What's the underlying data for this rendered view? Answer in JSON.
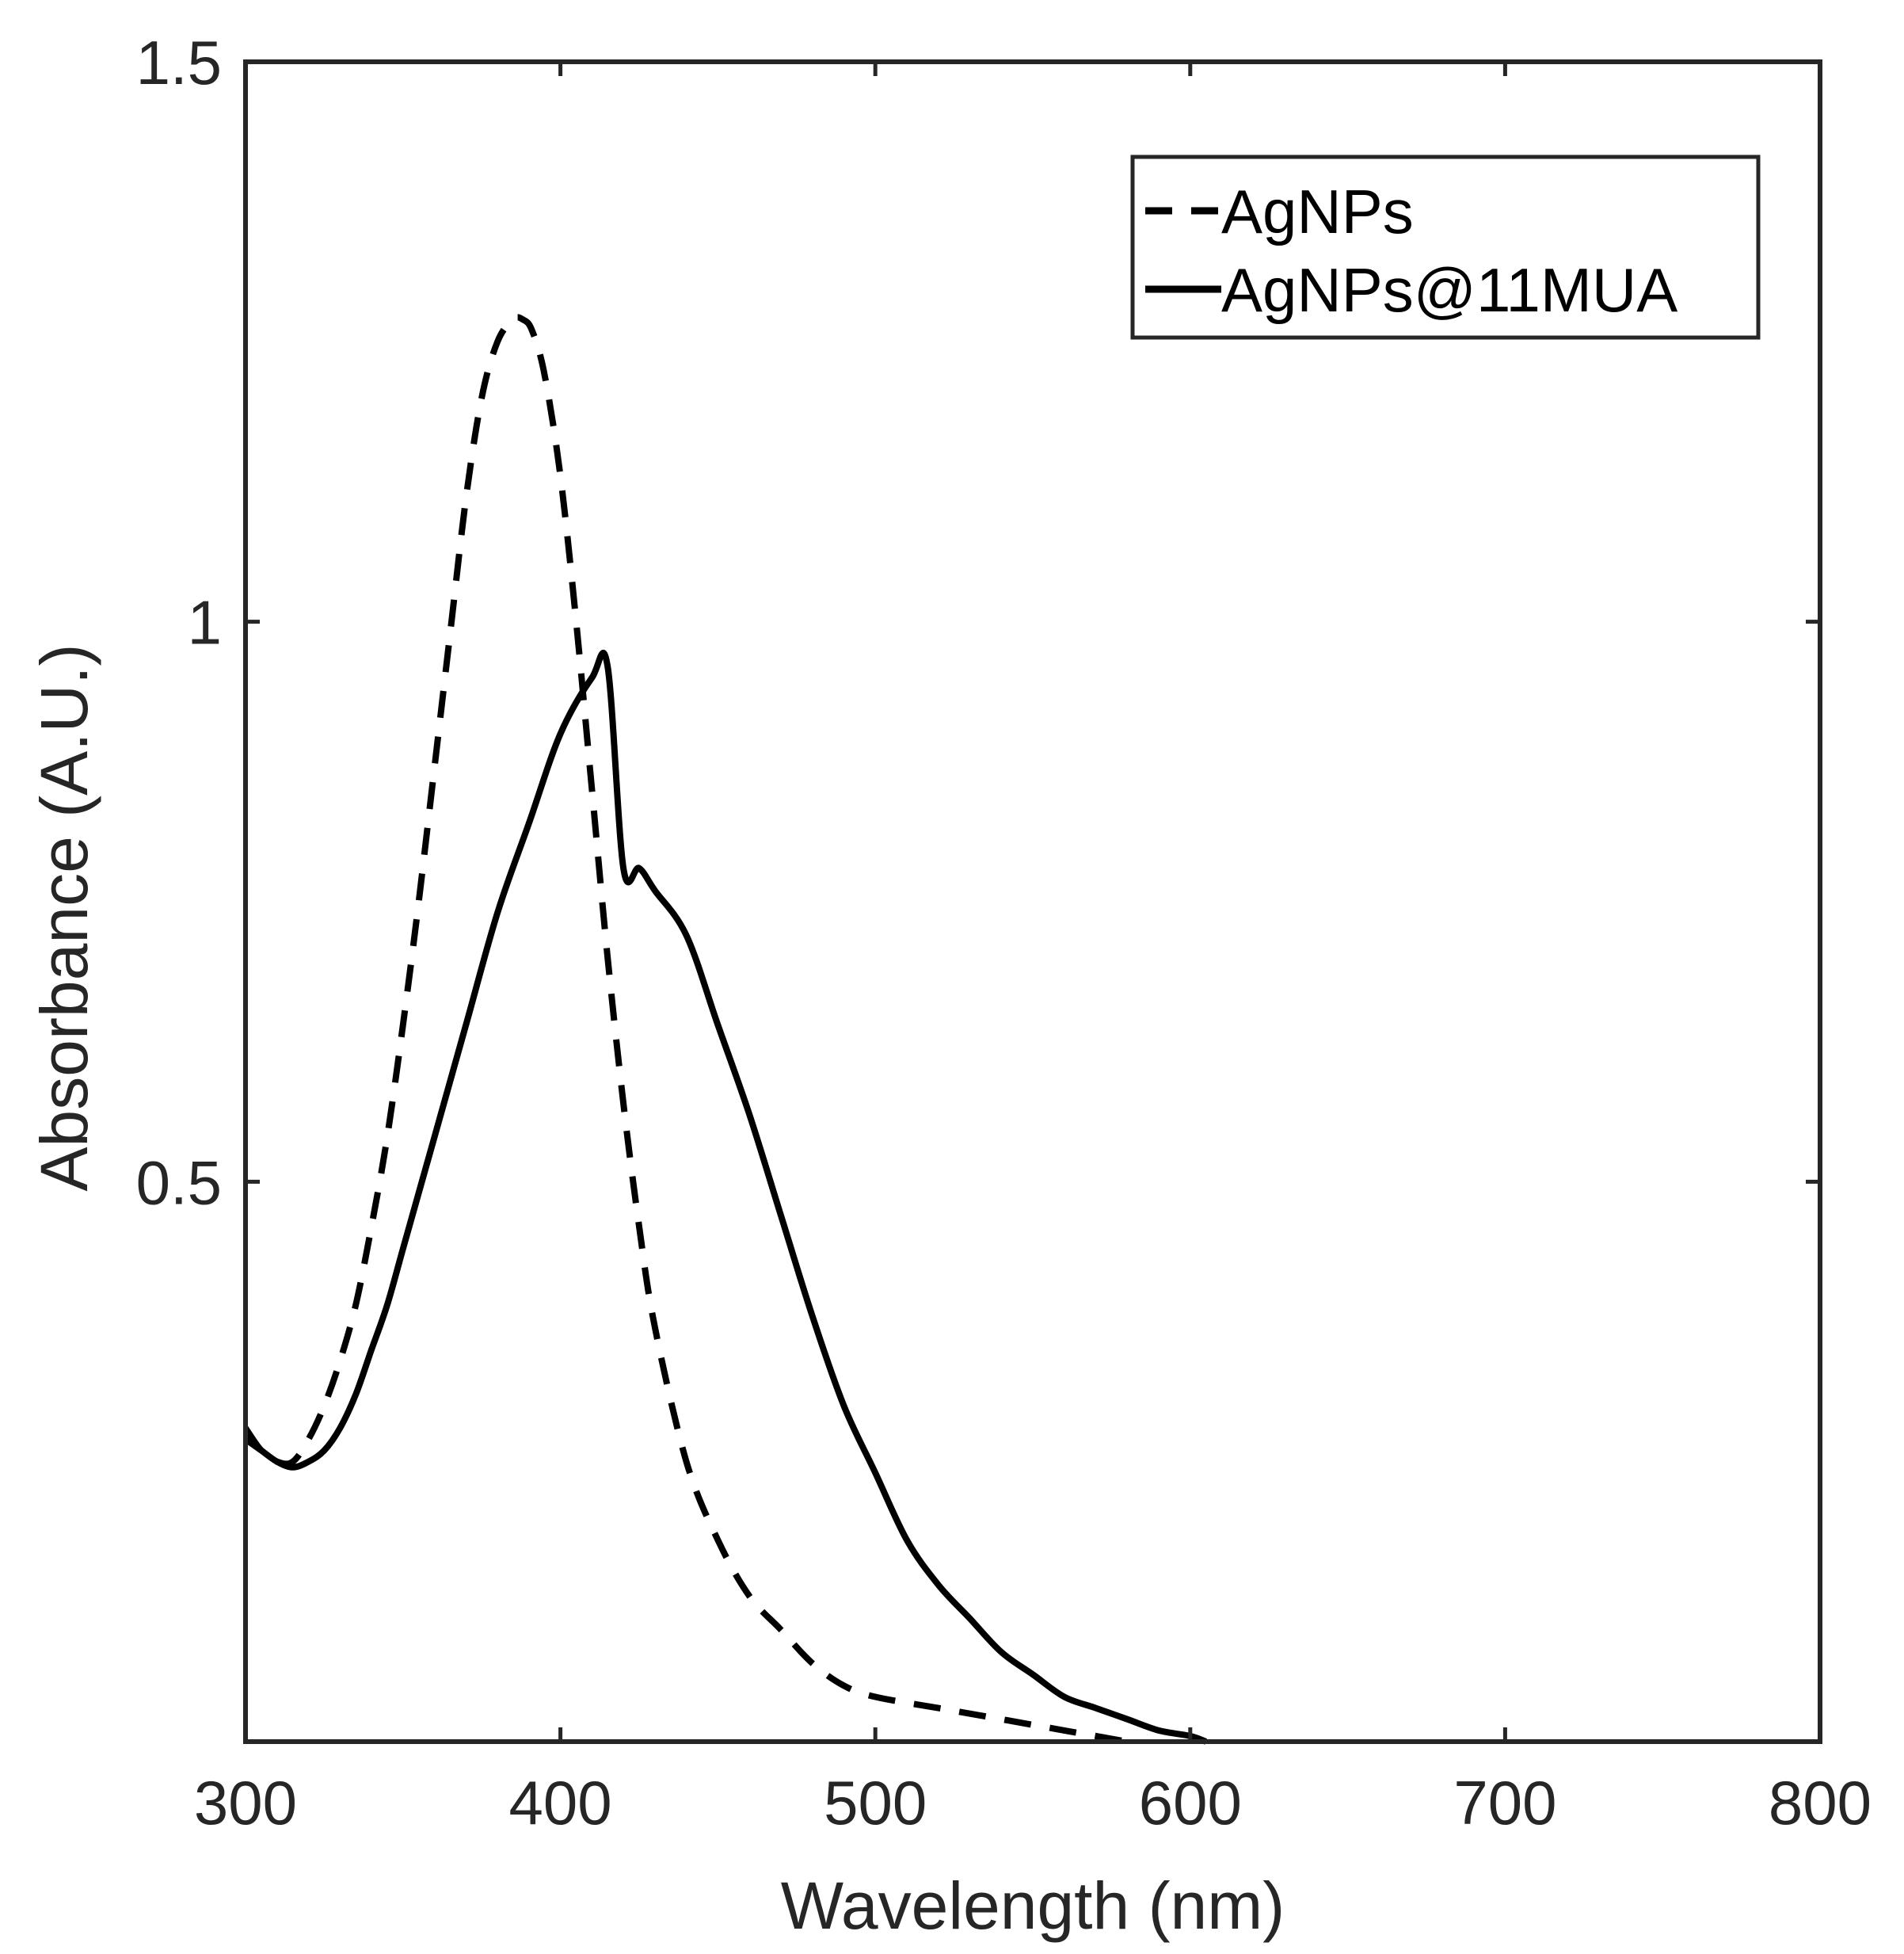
{
  "chart_data": {
    "type": "line",
    "title": "",
    "xlabel": "Wavelength (nm)",
    "ylabel": "Absorbance (A.U.)",
    "xlim": [
      300,
      800
    ],
    "ylim": [
      0,
      1.5
    ],
    "xticks": [
      300,
      400,
      500,
      600,
      700,
      800
    ],
    "xtick_labels": [
      "300",
      "400",
      "500",
      "600",
      "700",
      "800"
    ],
    "yticks": [
      0.5,
      1,
      1.5
    ],
    "ytick_labels": [
      "0.5",
      "1",
      "1.5"
    ],
    "grid": false,
    "legend_position": "top-right",
    "colors": {
      "axis": "#262626",
      "line": "#000000"
    },
    "series": [
      {
        "name": "AgNPs",
        "style": "dashed",
        "x": [
          300,
          305,
          310,
          315,
          320,
          325,
          330,
          335,
          340,
          345,
          350,
          355,
          360,
          365,
          370,
          375,
          380,
          385,
          388,
          391,
          395,
          400,
          405,
          410,
          415,
          420,
          425,
          430,
          440,
          450,
          460,
          470,
          480,
          490,
          500,
          520,
          540,
          560,
          580
        ],
        "y": [
          0.28,
          0.26,
          0.25,
          0.25,
          0.27,
          0.3,
          0.34,
          0.39,
          0.46,
          0.54,
          0.64,
          0.75,
          0.87,
          0.99,
          1.11,
          1.2,
          1.25,
          1.27,
          1.27,
          1.26,
          1.22,
          1.13,
          1.0,
          0.85,
          0.7,
          0.57,
          0.46,
          0.37,
          0.25,
          0.18,
          0.13,
          0.1,
          0.07,
          0.05,
          0.04,
          0.03,
          0.02,
          0.01,
          0.0
        ]
      },
      {
        "name": "AgNPs@11MUA",
        "style": "solid",
        "x": [
          300,
          305,
          310,
          315,
          320,
          325,
          330,
          335,
          340,
          345,
          350,
          360,
          370,
          380,
          390,
          400,
          410,
          415,
          420,
          425,
          430,
          440,
          450,
          460,
          470,
          480,
          490,
          500,
          510,
          520,
          530,
          540,
          550,
          560,
          570,
          580,
          590,
          600,
          605
        ],
        "y": [
          0.27,
          0.26,
          0.25,
          0.245,
          0.25,
          0.26,
          0.28,
          0.31,
          0.35,
          0.39,
          0.44,
          0.54,
          0.64,
          0.74,
          0.82,
          0.9,
          0.95,
          0.96,
          0.78,
          0.78,
          0.76,
          0.72,
          0.64,
          0.56,
          0.47,
          0.38,
          0.3,
          0.24,
          0.18,
          0.14,
          0.11,
          0.08,
          0.06,
          0.04,
          0.03,
          0.02,
          0.01,
          0.005,
          0.0
        ]
      }
    ]
  }
}
